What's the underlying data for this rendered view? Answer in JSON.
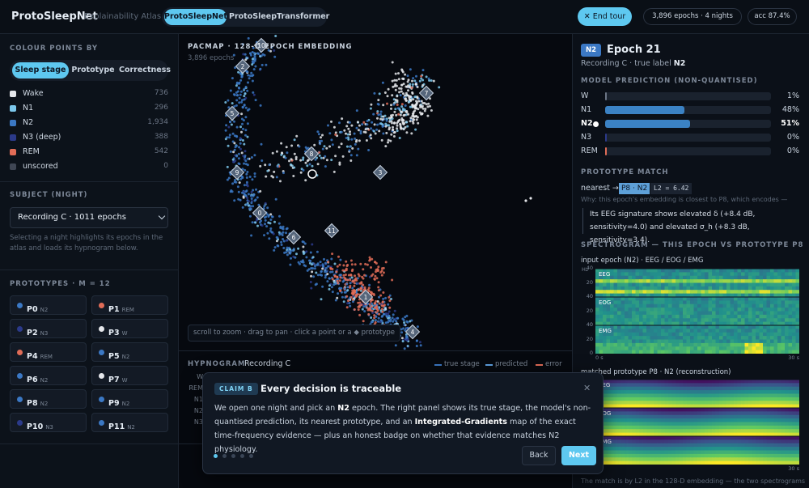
{
  "header": {
    "brand": "ProtoSleepNet",
    "subtitle": "Explainability Atlas",
    "tabs": [
      "ProtoSleepNet",
      "ProtoSleepTransformer"
    ],
    "end_tour": "✕ End tour",
    "epochs_badge": "3,896 epochs · 4 nights",
    "acc_badge": "acc 87.4%"
  },
  "sidebar": {
    "colour_heading": "COLOUR POINTS BY",
    "colour_modes": [
      "Sleep stage",
      "Prototype",
      "Correctness"
    ],
    "legend": [
      {
        "label": "Wake",
        "count": "736",
        "color": "#e5e7eb"
      },
      {
        "label": "N1",
        "count": "296",
        "color": "#7cc8ec"
      },
      {
        "label": "N2",
        "count": "1,934",
        "color": "#3b78c4"
      },
      {
        "label": "N3 (deep)",
        "count": "388",
        "color": "#2b3a8a"
      },
      {
        "label": "REM",
        "count": "542",
        "color": "#e06c57"
      },
      {
        "label": "unscored",
        "count": "0",
        "color": "#3f4654"
      }
    ],
    "subject_heading": "SUBJECT (NIGHT)",
    "subject_select": "Recording C · 1011 epochs",
    "subject_help": "Selecting a night highlights its epochs in the atlas and loads its hypnogram below.",
    "prototypes_heading": "PROTOTYPES · M = 12",
    "prototypes": [
      {
        "name": "P0",
        "stage": "N2",
        "color": "#3b78c4"
      },
      {
        "name": "P1",
        "stage": "REM",
        "color": "#e06c57"
      },
      {
        "name": "P2",
        "stage": "N3",
        "color": "#2b3a8a"
      },
      {
        "name": "P3",
        "stage": "W",
        "color": "#e5e7eb"
      },
      {
        "name": "P4",
        "stage": "REM",
        "color": "#e06c57"
      },
      {
        "name": "P5",
        "stage": "N2",
        "color": "#3b78c4"
      },
      {
        "name": "P6",
        "stage": "N2",
        "color": "#3b78c4"
      },
      {
        "name": "P7",
        "stage": "W",
        "color": "#e5e7eb"
      },
      {
        "name": "P8",
        "stage": "N2",
        "color": "#3b78c4"
      },
      {
        "name": "P9",
        "stage": "N2",
        "color": "#3b78c4"
      },
      {
        "name": "P10",
        "stage": "N3",
        "color": "#2b3a8a"
      },
      {
        "name": "P11",
        "stage": "N2",
        "color": "#3b78c4"
      }
    ]
  },
  "atlas": {
    "title": "PACMAP · 128-D EPOCH EMBEDDING",
    "count": "3,896 epochs",
    "hint": "scroll to zoom · drag to pan · click a point or a ◆ prototype",
    "markers": [
      "10",
      "2",
      "5",
      "7",
      "8",
      "9",
      "3",
      "0",
      "11",
      "6",
      "1",
      "4"
    ]
  },
  "hypnogram": {
    "title": "HYPNOGRAM",
    "recording": "Recording C",
    "legend": [
      {
        "label": "true stage",
        "color": "#3b78c4"
      },
      {
        "label": "predicted",
        "color": "#5ea0e0"
      },
      {
        "label": "error",
        "color": "#e06c57"
      }
    ],
    "stages": [
      "W",
      "REM",
      "N1",
      "N2",
      "N3"
    ]
  },
  "tour": {
    "tag": "CLAIM B",
    "title": "Every decision is traceable",
    "body": [
      "We open one night and pick an ",
      "N2",
      " epoch. The right panel shows its true stage, the model's non-quantised prediction, its nearest prototype, and an ",
      "Integrated-Gradients",
      " map of the exact time-frequency evidence — plus an honest badge on whether that evidence matches N2 physiology."
    ],
    "close": "✕",
    "back": "Back",
    "next": "Next"
  },
  "detail": {
    "badge": "N2",
    "epoch": "Epoch 21",
    "subtitle": [
      "Recording C · true label ",
      "N2"
    ],
    "prediction_heading": "MODEL PREDICTION (NON-QUANTISED)",
    "prediction": [
      {
        "label": "W",
        "value": 1,
        "value_label": "1%",
        "color": "#6b7585"
      },
      {
        "label": "N1",
        "value": 48,
        "value_label": "48%",
        "color": "#3b82c4"
      },
      {
        "label": "N2",
        "value": 51,
        "value_label": "51%",
        "color": "#3b82c4"
      },
      {
        "label": "N3",
        "value": 0,
        "value_label": "0%",
        "color": "#2b3a8a"
      },
      {
        "label": "REM",
        "value": 0,
        "value_label": "0%",
        "color": "#e06c57"
      }
    ],
    "match_heading": "PROTOTYPE MATCH",
    "nearest": "nearest →",
    "nearest_chip": "P8 · N2",
    "distance_chip": "L2 = 6.42",
    "why": "Why: this epoch's embedding is closest to P8, which encodes —",
    "quote": "Its EEG signature shows elevated δ (+8.4 dB, sensitivity=4.0) and elevated σ_h (+8.3 dB, sensitivity=3.4).",
    "spectrogram_heading": "SPECTROGRAM — THIS EPOCH VS PROTOTYPE P8",
    "input_caption": "input epoch (N2) · EEG / EOG / EMG",
    "proto_caption": "matched prototype P8 · N2 (reconstruction)",
    "footer": "The match is by L2 in the 128-D embedding — the two spectrograms",
    "spectrogram": {
      "unit": "Hz",
      "freq_ticks": [
        "40",
        "20",
        "0"
      ],
      "channels": [
        "EEG",
        "EOG",
        "EMG"
      ],
      "time_ticks": [
        "0 s",
        "30 s"
      ]
    }
  }
}
